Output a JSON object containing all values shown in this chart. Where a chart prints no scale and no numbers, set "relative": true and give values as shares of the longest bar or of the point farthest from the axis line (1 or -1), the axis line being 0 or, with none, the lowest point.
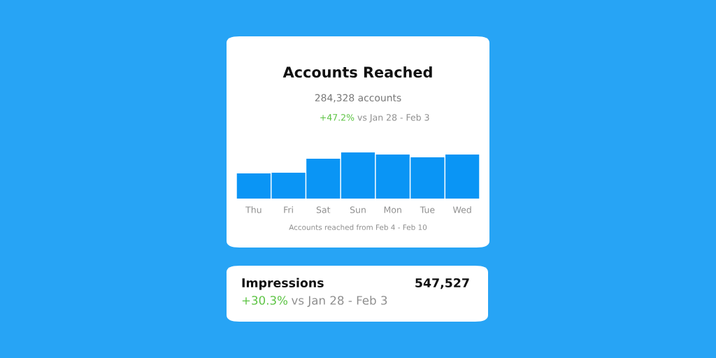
{
  "chart_data": [
    {
      "type": "bar",
      "title": "Accounts Reached",
      "subtitle": "284,328 accounts",
      "categories": [
        "Thu",
        "Fri",
        "Sat",
        "Sun",
        "Mon",
        "Tue",
        "Wed"
      ],
      "values": [
        0.545,
        0.56,
        0.864,
        1,
        0.955,
        0.894,
        0.955
      ],
      "color": "#0a95f5",
      "relative": true,
      "grid": false,
      "legend": false,
      "annotations": [
        "+47.2%",
        "vs Jan 28 - Feb 3",
        "Accounts reached from Feb 4 - Feb 10"
      ]
    },
    {
      "type": "other",
      "title": "Impressions",
      "annotations": [
        "547,527",
        "+30.3%",
        "vs Jan 28 - Feb 3"
      ]
    }
  ]
}
